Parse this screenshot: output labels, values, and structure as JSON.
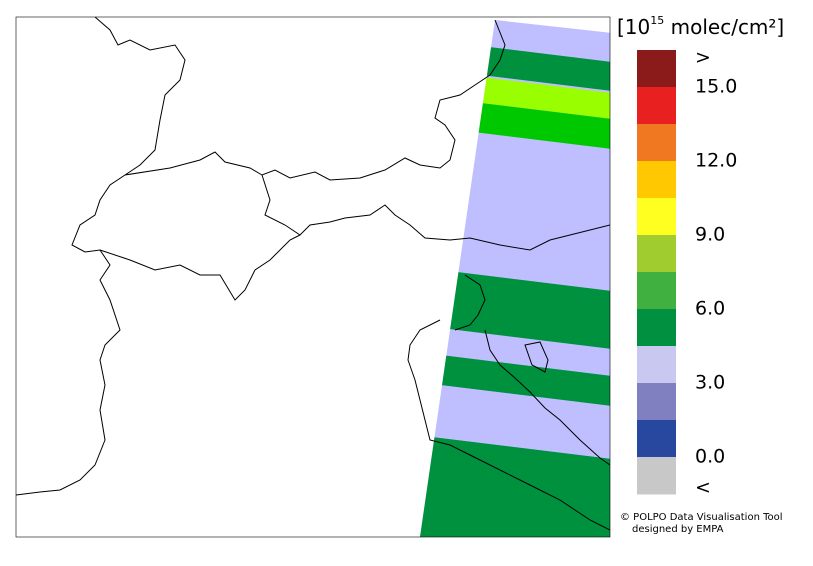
{
  "colorbar": {
    "title": {
      "base": "[10",
      "exponent": "15",
      "unit": " molec/cm²]"
    },
    "colors": [
      "#8b1a1a",
      "#e82020",
      "#f07820",
      "#ffc800",
      "#ffff20",
      "#a0cc30",
      "#40b040",
      "#009040",
      "#c8c8f0",
      "#8080c0",
      "#2848a0",
      "#c8c8c8"
    ],
    "labels": [
      ">",
      "15.0",
      "12.0",
      "9.0",
      "6.0",
      "3.0",
      "0.0",
      "<"
    ]
  },
  "credit": [
    "© POLPO Data Visualisation Tool",
    "designed by EMPA"
  ]
}
